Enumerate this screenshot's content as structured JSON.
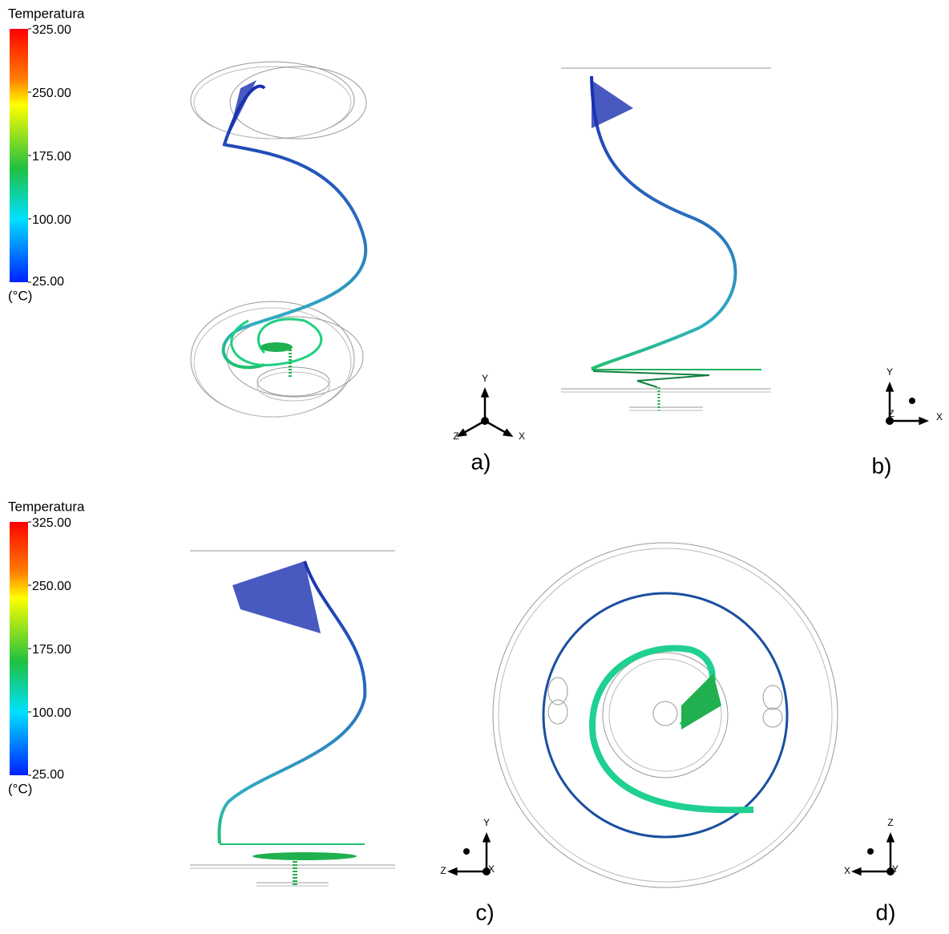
{
  "legends": [
    {
      "title": "Temperatura",
      "unit": "(°C)",
      "ticks": [
        {
          "value": 325,
          "label": "325.00"
        },
        {
          "value": 250,
          "label": "250.00"
        },
        {
          "value": 175,
          "label": "175.00"
        },
        {
          "value": 100,
          "label": "100.00"
        },
        {
          "value": 25,
          "label": "25.00"
        }
      ]
    },
    {
      "title": "Temperatura",
      "unit": "(°C)",
      "ticks": [
        {
          "value": 325,
          "label": "325.00"
        },
        {
          "value": 250,
          "label": "250.00"
        },
        {
          "value": 175,
          "label": "175.00"
        },
        {
          "value": 100,
          "label": "100.00"
        },
        {
          "value": 25,
          "label": "25.00"
        }
      ]
    }
  ],
  "panels": [
    {
      "label": "a)",
      "axes": [
        "Y",
        "Z",
        "X"
      ]
    },
    {
      "label": "b)",
      "axes": [
        "Y",
        "Z",
        "X"
      ]
    },
    {
      "label": "c)",
      "axes": [
        "Y",
        "Z",
        "X"
      ]
    },
    {
      "label": "d)",
      "axes": [
        "Z",
        "X",
        "Y"
      ]
    }
  ]
}
